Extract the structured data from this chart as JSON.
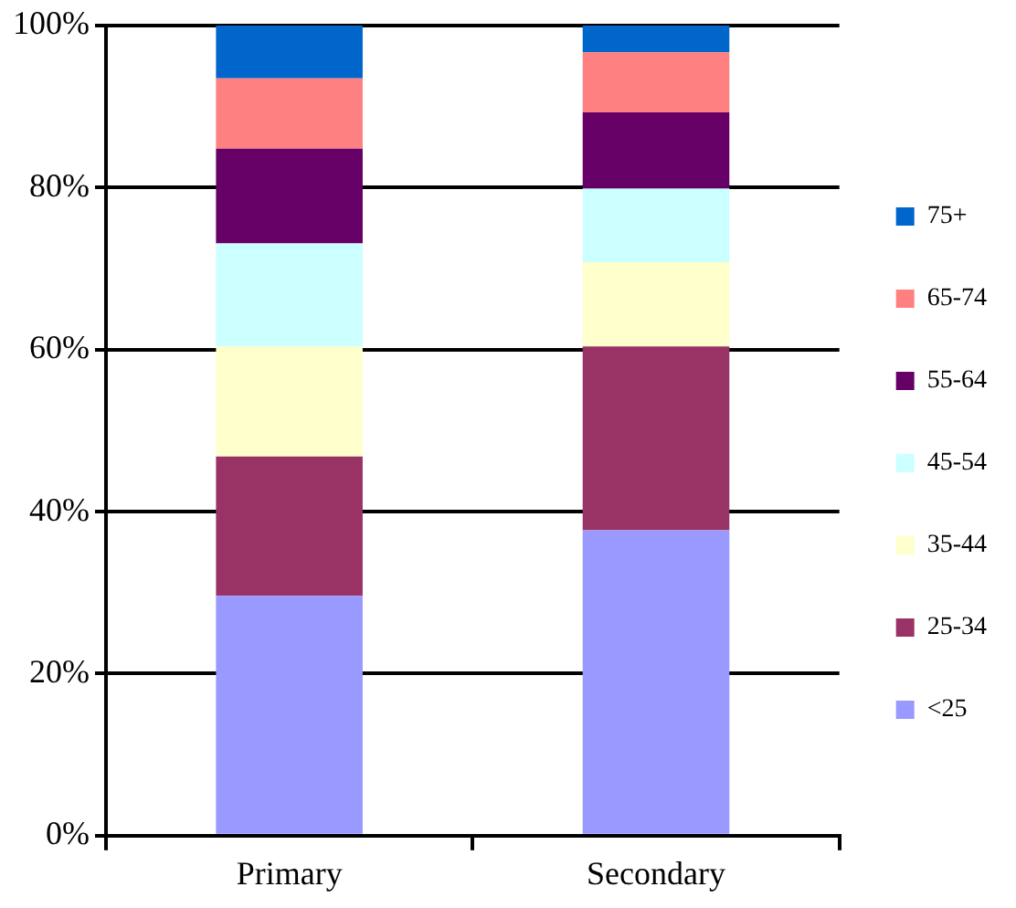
{
  "chart_data": {
    "type": "bar",
    "stacked": true,
    "categories": [
      "Primary",
      "Secondary"
    ],
    "series": [
      {
        "name": "<25",
        "color": "#9999ff",
        "values": [
          29.6,
          37.7
        ]
      },
      {
        "name": "25-34",
        "color": "#993366",
        "values": [
          17.2,
          22.7
        ]
      },
      {
        "name": "35-44",
        "color": "#ffffcc",
        "values": [
          13.6,
          10.4
        ]
      },
      {
        "name": "45-54",
        "color": "#ccffff",
        "values": [
          12.7,
          9.1
        ]
      },
      {
        "name": "55-64",
        "color": "#660066",
        "values": [
          11.7,
          9.4
        ]
      },
      {
        "name": "65-74",
        "color": "#ff8080",
        "values": [
          8.7,
          7.4
        ]
      },
      {
        "name": "75+",
        "color": "#0066cc",
        "values": [
          6.5,
          3.3
        ]
      }
    ],
    "ylim": [
      0,
      100
    ],
    "yticks": [
      {
        "value": 0,
        "label": "0%"
      },
      {
        "value": 20,
        "label": "20%"
      },
      {
        "value": 40,
        "label": "40%"
      },
      {
        "value": 60,
        "label": "60%"
      },
      {
        "value": 80,
        "label": "80%"
      },
      {
        "value": 100,
        "label": "100%"
      }
    ],
    "grid": "y",
    "legend": "right"
  }
}
